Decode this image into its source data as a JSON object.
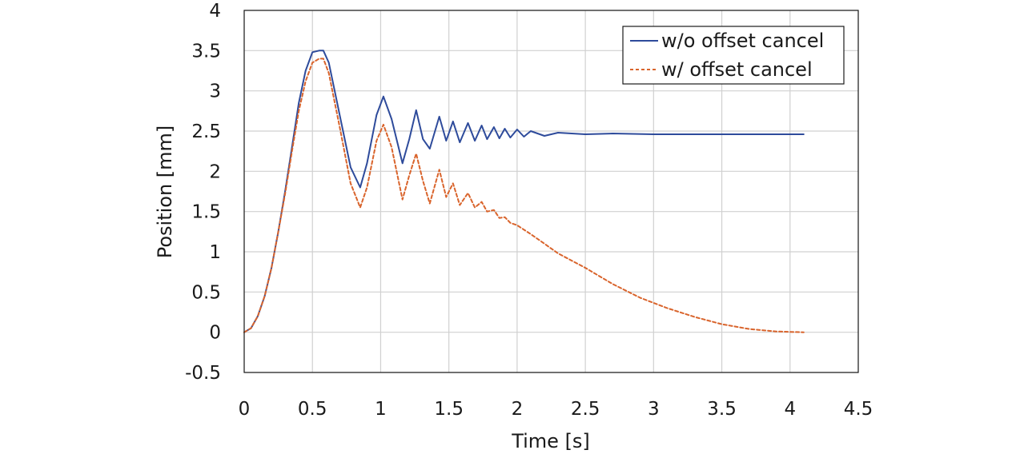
{
  "chart_data": {
    "type": "line",
    "title": "",
    "xlabel": "Time [s]",
    "ylabel": "Position [mm]",
    "xlim": [
      0,
      4.5
    ],
    "ylim": [
      -0.5,
      4
    ],
    "xticks": [
      "0",
      "0.5",
      "1",
      "1.5",
      "2",
      "2.5",
      "3",
      "3.5",
      "4",
      "4.5"
    ],
    "yticks": [
      "-0.5",
      "0",
      "0.5",
      "1",
      "1.5",
      "2",
      "2.5",
      "3",
      "3.5",
      "4"
    ],
    "grid": true,
    "legend_position": "top-right",
    "series": [
      {
        "name": "w/o offset cancel",
        "color": "#2e4b9b",
        "style": "solid",
        "x": [
          0,
          0.05,
          0.1,
          0.15,
          0.2,
          0.25,
          0.3,
          0.35,
          0.4,
          0.45,
          0.5,
          0.55,
          0.58,
          0.62,
          0.7,
          0.78,
          0.85,
          0.9,
          0.97,
          1.02,
          1.08,
          1.16,
          1.21,
          1.26,
          1.31,
          1.36,
          1.43,
          1.48,
          1.53,
          1.58,
          1.64,
          1.69,
          1.74,
          1.78,
          1.83,
          1.87,
          1.91,
          1.95,
          2.0,
          2.05,
          2.1,
          2.2,
          2.3,
          2.5,
          2.7,
          3.0,
          3.5,
          4.1
        ],
        "y": [
          0,
          0.05,
          0.2,
          0.45,
          0.8,
          1.25,
          1.75,
          2.3,
          2.85,
          3.25,
          3.48,
          3.5,
          3.5,
          3.35,
          2.7,
          2.05,
          1.8,
          2.1,
          2.7,
          2.93,
          2.65,
          2.1,
          2.4,
          2.76,
          2.4,
          2.28,
          2.68,
          2.38,
          2.62,
          2.36,
          2.6,
          2.38,
          2.57,
          2.4,
          2.55,
          2.41,
          2.53,
          2.42,
          2.52,
          2.43,
          2.5,
          2.44,
          2.48,
          2.46,
          2.47,
          2.46,
          2.46,
          2.46
        ]
      },
      {
        "name": "w/ offset cancel",
        "color": "#d9642c",
        "style": "dashed",
        "x": [
          0,
          0.05,
          0.1,
          0.15,
          0.2,
          0.25,
          0.3,
          0.35,
          0.4,
          0.45,
          0.5,
          0.55,
          0.58,
          0.62,
          0.7,
          0.78,
          0.85,
          0.9,
          0.97,
          1.02,
          1.08,
          1.16,
          1.21,
          1.26,
          1.31,
          1.36,
          1.43,
          1.48,
          1.53,
          1.58,
          1.64,
          1.69,
          1.74,
          1.78,
          1.83,
          1.87,
          1.91,
          1.95,
          2.0,
          2.1,
          2.2,
          2.3,
          2.5,
          2.7,
          2.9,
          3.1,
          3.3,
          3.5,
          3.7,
          3.9,
          4.1
        ],
        "y": [
          0,
          0.05,
          0.2,
          0.45,
          0.8,
          1.25,
          1.72,
          2.25,
          2.75,
          3.12,
          3.35,
          3.4,
          3.4,
          3.22,
          2.55,
          1.85,
          1.55,
          1.8,
          2.38,
          2.58,
          2.3,
          1.65,
          1.95,
          2.22,
          1.88,
          1.6,
          2.02,
          1.68,
          1.85,
          1.58,
          1.73,
          1.55,
          1.62,
          1.5,
          1.52,
          1.42,
          1.43,
          1.36,
          1.33,
          1.22,
          1.1,
          0.98,
          0.8,
          0.6,
          0.43,
          0.3,
          0.19,
          0.1,
          0.04,
          0.01,
          0.0
        ]
      }
    ]
  }
}
